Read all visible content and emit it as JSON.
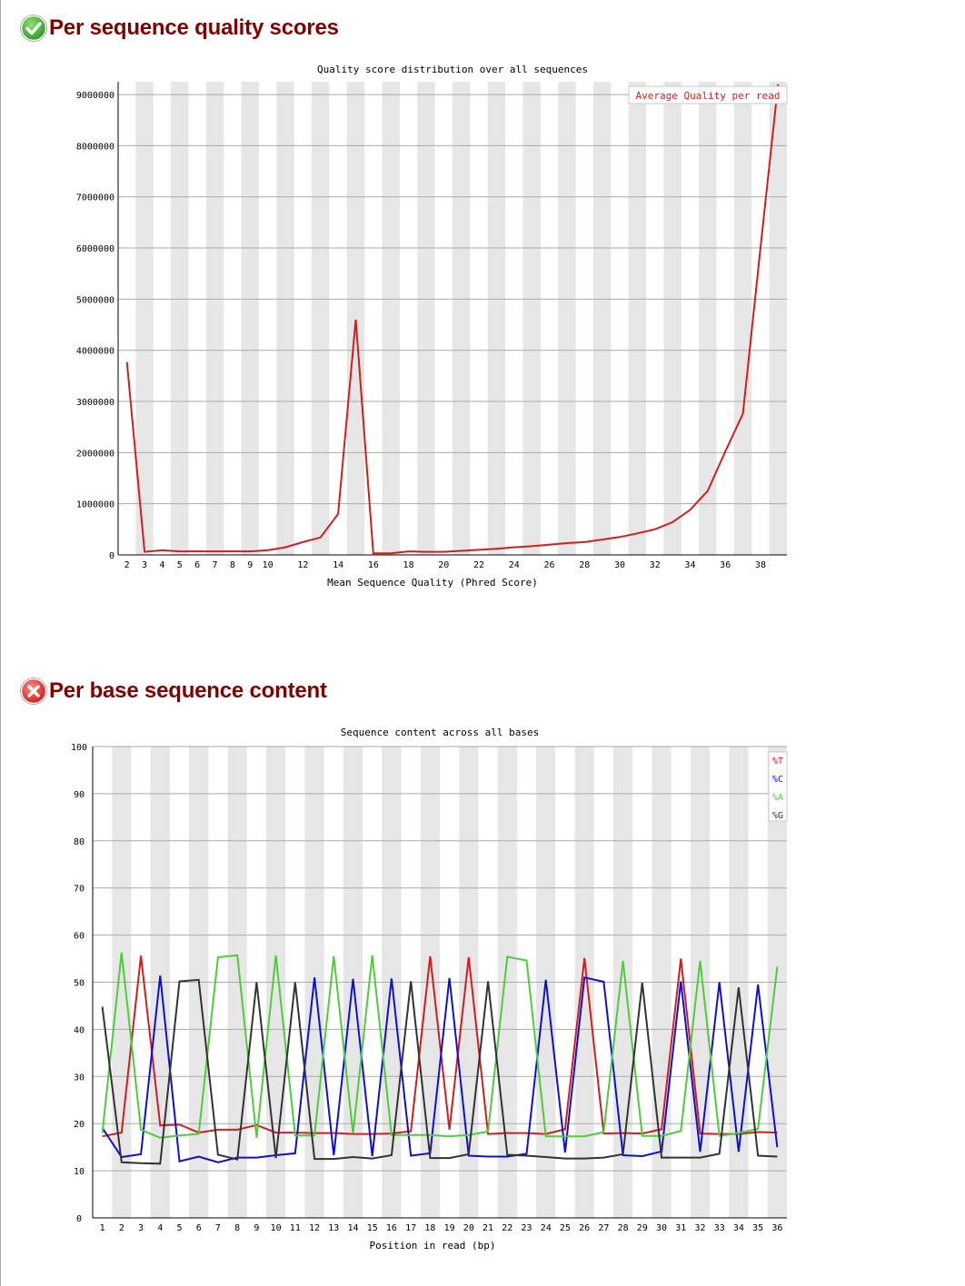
{
  "sections": [
    {
      "title": "Per sequence quality scores",
      "status": "pass",
      "status_icon": "check-circle-icon",
      "status_color": "#33aa33"
    },
    {
      "title": "Per base sequence content",
      "status": "fail",
      "status_icon": "x-circle-icon",
      "status_color": "#e03030"
    }
  ],
  "chart_data": [
    {
      "type": "line",
      "title": "Quality score distribution over all sequences",
      "xlabel": "Mean Sequence Quality (Phred Score)",
      "ylabel": "",
      "x": [
        2,
        3,
        4,
        5,
        6,
        7,
        8,
        9,
        10,
        11,
        12,
        13,
        14,
        15,
        16,
        17,
        18,
        19,
        20,
        21,
        22,
        23,
        24,
        25,
        26,
        27,
        28,
        29,
        30,
        31,
        32,
        33,
        34,
        35,
        36,
        37,
        38,
        39
      ],
      "xticks": [
        "2",
        "3",
        "4",
        "5",
        "6",
        "7",
        "8",
        "9",
        "10",
        "12",
        "14",
        "16",
        "18",
        "20",
        "22",
        "24",
        "26",
        "28",
        "30",
        "32",
        "34",
        "36",
        "38"
      ],
      "xlim": [
        1.5,
        39.5
      ],
      "yticks": [
        "0",
        "1000000",
        "2000000",
        "3000000",
        "4000000",
        "5000000",
        "6000000",
        "7000000",
        "8000000",
        "9000000"
      ],
      "ylim": [
        0,
        9250000
      ],
      "series": [
        {
          "name": "Average Quality per read",
          "color": "#cc2020",
          "values": [
            3770000,
            60000,
            90000,
            70000,
            70000,
            70000,
            70000,
            70000,
            90000,
            150000,
            250000,
            340000,
            800000,
            4600000,
            30000,
            30000,
            70000,
            60000,
            60000,
            80000,
            100000,
            120000,
            150000,
            170000,
            200000,
            230000,
            250000,
            300000,
            350000,
            420000,
            500000,
            640000,
            880000,
            1250000,
            2020000,
            2760000,
            6000000,
            9200000
          ]
        }
      ],
      "legend": "top-right",
      "grid": true
    },
    {
      "type": "line",
      "title": "Sequence content across all bases",
      "xlabel": "Position in read (bp)",
      "ylabel": "",
      "x": [
        1,
        2,
        3,
        4,
        5,
        6,
        7,
        8,
        9,
        10,
        11,
        12,
        13,
        14,
        15,
        16,
        17,
        18,
        19,
        20,
        21,
        22,
        23,
        24,
        25,
        26,
        27,
        28,
        29,
        30,
        31,
        32,
        33,
        34,
        35,
        36
      ],
      "xticks": [
        "1",
        "2",
        "3",
        "4",
        "5",
        "6",
        "7",
        "8",
        "9",
        "10",
        "11",
        "12",
        "13",
        "14",
        "15",
        "16",
        "17",
        "18",
        "19",
        "20",
        "21",
        "22",
        "23",
        "24",
        "25",
        "26",
        "27",
        "28",
        "29",
        "30",
        "31",
        "32",
        "33",
        "34",
        "35",
        "36"
      ],
      "xlim": [
        0.5,
        36.5
      ],
      "yticks": [
        "0",
        "10",
        "20",
        "30",
        "40",
        "50",
        "60",
        "70",
        "80",
        "90",
        "100"
      ],
      "ylim": [
        0,
        100
      ],
      "series": [
        {
          "name": "%T",
          "color": "#cc2020",
          "values": [
            17.3,
            18.1,
            55.6,
            19.6,
            19.8,
            18.1,
            18.7,
            18.7,
            19.7,
            18.1,
            18.1,
            18.0,
            18.0,
            17.8,
            17.8,
            17.9,
            18.4,
            55.5,
            18.7,
            55.3,
            17.8,
            18.0,
            18.0,
            17.8,
            18.8,
            55.1,
            17.9,
            18.0,
            17.9,
            18.8,
            55.0,
            17.9,
            17.8,
            17.8,
            18.2,
            18.1
          ]
        },
        {
          "name": "%C",
          "color": "#1010cc",
          "values": [
            19.1,
            12.9,
            13.5,
            51.4,
            12.0,
            13.0,
            11.8,
            12.8,
            12.8,
            13.3,
            13.7,
            51.0,
            13.3,
            50.7,
            13.1,
            50.8,
            13.2,
            13.7,
            50.9,
            13.2,
            13.0,
            13.0,
            13.6,
            50.5,
            13.9,
            51.0,
            50.1,
            13.3,
            13.1,
            14.1,
            50.2,
            14.0,
            50.0,
            14.0,
            49.5,
            15.0
          ]
        },
        {
          "name": "%A",
          "color": "#4fcc3a",
          "values": [
            18.0,
            56.3,
            18.7,
            17.0,
            17.5,
            17.8,
            55.3,
            55.7,
            17.0,
            55.7,
            17.5,
            17.5,
            55.5,
            17.9,
            55.7,
            17.6,
            17.6,
            17.6,
            17.3,
            17.6,
            18.3,
            55.4,
            54.6,
            17.3,
            17.3,
            17.3,
            18.2,
            54.5,
            17.4,
            17.4,
            18.4,
            54.5,
            17.4,
            18.0,
            18.9,
            53.3
          ]
        },
        {
          "name": "%G",
          "color": "#333333",
          "values": [
            44.8,
            11.8,
            11.6,
            11.5,
            50.2,
            50.5,
            13.4,
            12.4,
            50.0,
            12.7,
            50.0,
            12.5,
            12.5,
            12.9,
            12.6,
            13.3,
            50.2,
            12.7,
            12.7,
            13.5,
            50.2,
            13.4,
            13.2,
            12.9,
            12.6,
            12.6,
            12.8,
            13.5,
            49.9,
            12.8,
            12.8,
            12.8,
            13.6,
            48.9,
            13.2,
            13.0
          ]
        }
      ],
      "legend": "top-right",
      "grid": true
    }
  ]
}
